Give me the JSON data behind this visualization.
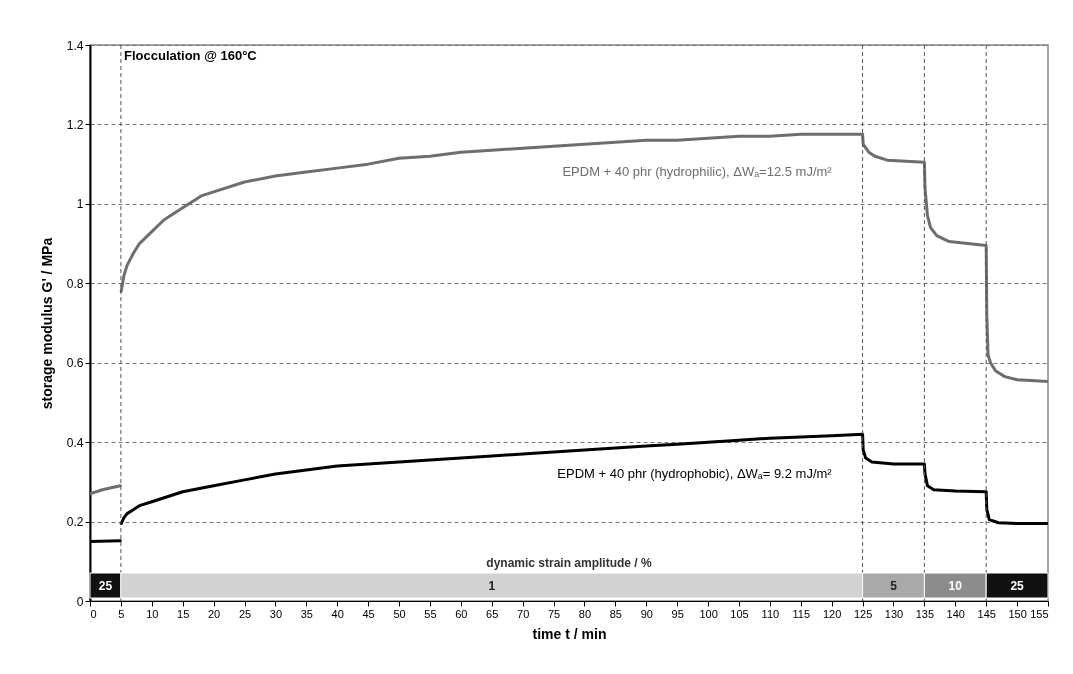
{
  "chart_data": {
    "type": "line",
    "title": "Flocculation @ 160°C",
    "xlabel": "time t / min",
    "ylabel": "storage modulus G' / MPa",
    "xlim": [
      0,
      155
    ],
    "xticks": [
      0,
      5,
      10,
      15,
      20,
      25,
      30,
      35,
      40,
      45,
      50,
      55,
      60,
      65,
      70,
      75,
      80,
      85,
      90,
      95,
      100,
      105,
      110,
      115,
      120,
      125,
      130,
      135,
      140,
      145,
      150,
      155
    ],
    "ylim": [
      0,
      1.4
    ],
    "yticks": [
      0,
      0.2,
      0.4,
      0.6,
      0.8,
      1,
      1.2,
      1.4
    ],
    "grid": "y",
    "series": [
      {
        "name": "EPDM + 40 phr (hydrophilic), ΔWₐ=12.5 mJ/m²",
        "color": "#6e6e6e",
        "x": [
          0,
          2,
          4.9,
          5,
          5.05,
          5.5,
          6,
          7,
          8,
          10,
          12,
          15,
          18,
          20,
          25,
          30,
          35,
          40,
          45,
          50,
          55,
          60,
          65,
          70,
          75,
          80,
          85,
          90,
          95,
          100,
          105,
          110,
          115,
          120,
          125,
          125.1,
          126,
          127,
          129,
          132,
          135,
          135.1,
          135.5,
          136,
          137,
          139,
          142,
          145,
          145.1,
          145.3,
          145.7,
          146.5,
          148,
          150,
          155
        ],
        "values": [
          0.27,
          0.28,
          0.29,
          null,
          0.78,
          0.82,
          0.845,
          0.875,
          0.9,
          0.93,
          0.96,
          0.99,
          1.02,
          1.03,
          1.055,
          1.07,
          1.08,
          1.09,
          1.1,
          1.115,
          1.12,
          1.13,
          1.135,
          1.14,
          1.145,
          1.15,
          1.155,
          1.16,
          1.16,
          1.165,
          1.17,
          1.17,
          1.175,
          1.175,
          1.175,
          1.15,
          1.13,
          1.12,
          1.11,
          1.107,
          1.105,
          1.04,
          0.97,
          0.94,
          0.92,
          0.905,
          0.9,
          0.895,
          0.72,
          0.62,
          0.6,
          0.58,
          0.565,
          0.557,
          0.553
        ]
      },
      {
        "name": "EPDM + 40 phr (hydrophobic), ΔWₐ= 9.2 mJ/m²",
        "color": "#000000",
        "x": [
          0,
          4.9,
          5,
          5.05,
          5.5,
          6,
          7,
          8,
          10,
          12,
          15,
          20,
          25,
          30,
          35,
          40,
          45,
          50,
          55,
          60,
          65,
          70,
          75,
          80,
          85,
          90,
          95,
          100,
          105,
          110,
          115,
          120,
          125,
          125.1,
          125.5,
          126.5,
          130,
          135,
          135.1,
          135.5,
          136.5,
          140,
          145,
          145.1,
          145.5,
          147,
          150,
          155
        ],
        "values": [
          0.15,
          0.152,
          null,
          0.195,
          0.21,
          0.22,
          0.23,
          0.24,
          0.25,
          0.26,
          0.275,
          0.29,
          0.305,
          0.32,
          0.33,
          0.34,
          0.345,
          0.35,
          0.355,
          0.36,
          0.365,
          0.37,
          0.375,
          0.38,
          0.385,
          0.39,
          0.395,
          0.4,
          0.405,
          0.41,
          0.413,
          0.416,
          0.42,
          0.38,
          0.36,
          0.35,
          0.345,
          0.345,
          0.32,
          0.29,
          0.28,
          0.277,
          0.275,
          0.23,
          0.205,
          0.197,
          0.195,
          0.195
        ]
      }
    ],
    "ref_lines": [
      {
        "axis": "x",
        "value": 5,
        "line_style": "dashed",
        "color": "#555555"
      },
      {
        "axis": "x",
        "value": 125,
        "line_style": "dashed",
        "color": "#555555"
      },
      {
        "axis": "x",
        "value": 135,
        "line_style": "dashed",
        "color": "#555555"
      },
      {
        "axis": "x",
        "value": 145,
        "line_style": "dashed",
        "color": "#555555"
      }
    ],
    "bands": [
      {
        "axis": "x",
        "from": 0,
        "to": 5,
        "label": "25",
        "color": "#111111"
      },
      {
        "axis": "x",
        "from": 5,
        "to": 125,
        "label": "1",
        "color": "#d2d2d2"
      },
      {
        "axis": "x",
        "from": 125,
        "to": 135,
        "label": "5",
        "color": "#a9a9a9"
      },
      {
        "axis": "x",
        "from": 135,
        "to": 145,
        "label": "10",
        "color": "#8c8c8c"
      },
      {
        "axis": "x",
        "from": 145,
        "to": 155,
        "label": "25",
        "color": "#111111"
      }
    ],
    "annotations": [
      "dynamic strain amplitude / %"
    ]
  }
}
